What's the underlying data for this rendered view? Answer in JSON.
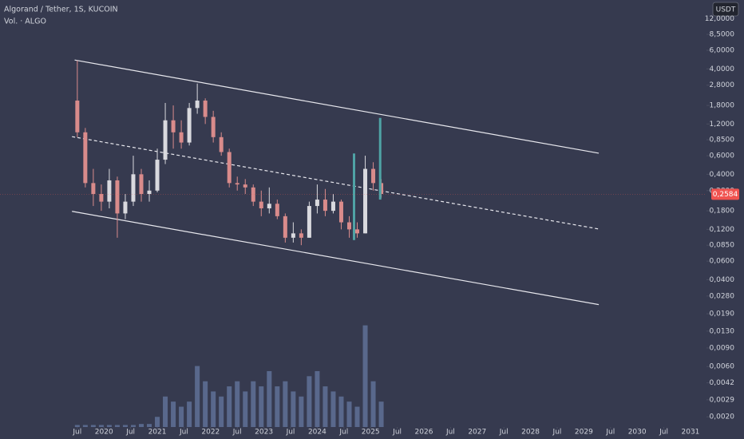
{
  "chart_data": {
    "type": "candlestick",
    "title": "Algorand / Tether, 1S, KUCOIN",
    "subtitle": "Vol. · ALGO",
    "currency": "USDT",
    "log_scale": true,
    "x": [
      2019.5,
      2019.65,
      2019.8,
      2019.95,
      2020.1,
      2020.25,
      2020.4,
      2020.55,
      2020.7,
      2020.85,
      2021.0,
      2021.15,
      2021.3,
      2021.45,
      2021.6,
      2021.75,
      2021.9,
      2022.05,
      2022.2,
      2022.35,
      2022.5,
      2022.65,
      2022.8,
      2022.95,
      2023.1,
      2023.25,
      2023.4,
      2023.55,
      2023.7,
      2023.85,
      2024.0,
      2024.15,
      2024.3,
      2024.45,
      2024.6,
      2024.75,
      2024.9,
      2025.05,
      2025.2
    ],
    "open": [
      2.0,
      1.0,
      0.33,
      0.26,
      0.22,
      0.35,
      0.17,
      0.22,
      0.4,
      0.26,
      0.28,
      0.55,
      1.3,
      1.0,
      0.8,
      1.7,
      2.0,
      1.4,
      0.9,
      0.65,
      0.33,
      0.32,
      0.3,
      0.22,
      0.19,
      0.21,
      0.16,
      0.1,
      0.11,
      0.1,
      0.2,
      0.23,
      0.18,
      0.22,
      0.14,
      0.12,
      0.11,
      0.45,
      0.33
    ],
    "high": [
      4.8,
      1.1,
      0.45,
      0.32,
      0.45,
      0.38,
      0.26,
      0.6,
      0.45,
      0.35,
      0.7,
      1.9,
      1.8,
      1.3,
      1.9,
      2.9,
      2.1,
      1.6,
      1.0,
      0.7,
      0.38,
      0.36,
      0.32,
      0.28,
      0.3,
      0.23,
      0.17,
      0.14,
      0.12,
      0.22,
      0.32,
      0.29,
      0.26,
      0.23,
      0.16,
      0.14,
      0.6,
      0.52,
      0.36
    ],
    "low": [
      0.9,
      0.3,
      0.2,
      0.18,
      0.19,
      0.1,
      0.15,
      0.2,
      0.22,
      0.22,
      0.27,
      0.5,
      0.7,
      0.7,
      0.75,
      1.5,
      1.2,
      0.8,
      0.6,
      0.3,
      0.28,
      0.26,
      0.2,
      0.16,
      0.17,
      0.15,
      0.09,
      0.09,
      0.085,
      0.1,
      0.17,
      0.16,
      0.17,
      0.12,
      0.1,
      0.1,
      0.11,
      0.28,
      0.24
    ],
    "close": [
      1.0,
      0.33,
      0.26,
      0.22,
      0.35,
      0.17,
      0.22,
      0.4,
      0.26,
      0.28,
      0.55,
      1.3,
      1.0,
      0.8,
      1.7,
      2.0,
      1.4,
      0.9,
      0.65,
      0.33,
      0.32,
      0.3,
      0.22,
      0.19,
      0.21,
      0.16,
      0.1,
      0.11,
      0.1,
      0.2,
      0.23,
      0.18,
      0.22,
      0.14,
      0.12,
      0.11,
      0.45,
      0.33,
      0.26
    ],
    "up_color": "#d9d9de",
    "down_color": "#d98b8b",
    "series": [
      {
        "name": "Vol. · ALGO",
        "axis": "y2",
        "color": "#5f7196",
        "values": [
          2,
          2,
          2,
          2,
          2,
          2,
          2,
          2,
          3,
          3,
          10,
          30,
          25,
          20,
          25,
          60,
          45,
          35,
          30,
          40,
          45,
          35,
          45,
          40,
          55,
          40,
          45,
          35,
          30,
          50,
          55,
          40,
          35,
          30,
          25,
          20,
          100,
          45,
          25
        ]
      }
    ],
    "y2lim": [
      0,
      420
    ],
    "xlim": [
      2018.05,
      2031.3
    ],
    "xticks": [
      {
        "value": 2019.5,
        "label": "Jul"
      },
      2020,
      {
        "value": 2020.5,
        "label": "Jul"
      },
      2021,
      {
        "value": 2021.5,
        "label": "Jul"
      },
      2022,
      {
        "value": 2022.5,
        "label": "Jul"
      },
      2023,
      {
        "value": 2023.5,
        "label": "Jul"
      },
      2024,
      {
        "value": 2024.5,
        "label": "Jul"
      },
      2025,
      {
        "value": 2025.5,
        "label": "Jul"
      },
      2026,
      {
        "value": 2026.5,
        "label": "Jul"
      },
      2027,
      {
        "value": 2027.5,
        "label": "Jul"
      },
      2028,
      {
        "value": 2028.5,
        "label": "Jul"
      },
      2029,
      {
        "value": 2029.5,
        "label": "Jul"
      },
      2030,
      {
        "value": 2030.5,
        "label": "Jul"
      },
      2031
    ],
    "ylim": [
      0.0016,
      18
    ],
    "yticks": [
      {
        "value": 12,
        "label": "12,0000"
      },
      {
        "value": 8.5,
        "label": "8,5000"
      },
      {
        "value": 6,
        "label": "6,0000"
      },
      {
        "value": 4,
        "label": "4,0000"
      },
      {
        "value": 2.8,
        "label": "2,8000"
      },
      {
        "value": 1.8,
        "label": "1,8000"
      },
      {
        "value": 1.2,
        "label": "1,2000"
      },
      {
        "value": 0.85,
        "label": "0,8500"
      },
      {
        "value": 0.6,
        "label": "0,6000"
      },
      {
        "value": 0.4,
        "label": "0,4000"
      },
      {
        "value": 0.28,
        "label": "0,2800"
      },
      {
        "value": 0.18,
        "label": "0,1800"
      },
      {
        "value": 0.12,
        "label": "0,1200"
      },
      {
        "value": 0.085,
        "label": "0,0850"
      },
      {
        "value": 0.06,
        "label": "0,0600"
      },
      {
        "value": 0.04,
        "label": "0,0400"
      },
      {
        "value": 0.028,
        "label": "0,0280"
      },
      {
        "value": 0.019,
        "label": "0,0190"
      },
      {
        "value": 0.013,
        "label": "0,0130"
      },
      {
        "value": 0.009,
        "label": "0,0090"
      },
      {
        "value": 0.006,
        "label": "0,0060"
      },
      {
        "value": 0.0042,
        "label": "0,0042"
      },
      {
        "value": 0.0029,
        "label": "0,0029"
      },
      {
        "value": 0.002,
        "label": "0,0020"
      }
    ],
    "current_price": {
      "value": 0.2584,
      "label": "0,2584",
      "color": "#f05350"
    },
    "trend_lines": [
      {
        "x": [
          2019.45,
          2029.28
        ],
        "y": [
          4.85,
          0.634
        ],
        "dashed": false,
        "color": "#e8e8ee"
      },
      {
        "x": [
          2019.4,
          2029.28
        ],
        "y": [
          0.91,
          0.121
        ],
        "dashed": true,
        "color": "#e8e8ee"
      },
      {
        "x": [
          2019.4,
          2029.28
        ],
        "y": [
          0.178,
          0.0232
        ],
        "dashed": false,
        "color": "#e8e8ee"
      }
    ],
    "range_markers": {
      "color": "#4fa3a5",
      "x": [
        2024.69,
        2025.18
      ],
      "top": [
        0.63,
        1.37
      ],
      "bottom": [
        0.095,
        0.23
      ]
    }
  }
}
